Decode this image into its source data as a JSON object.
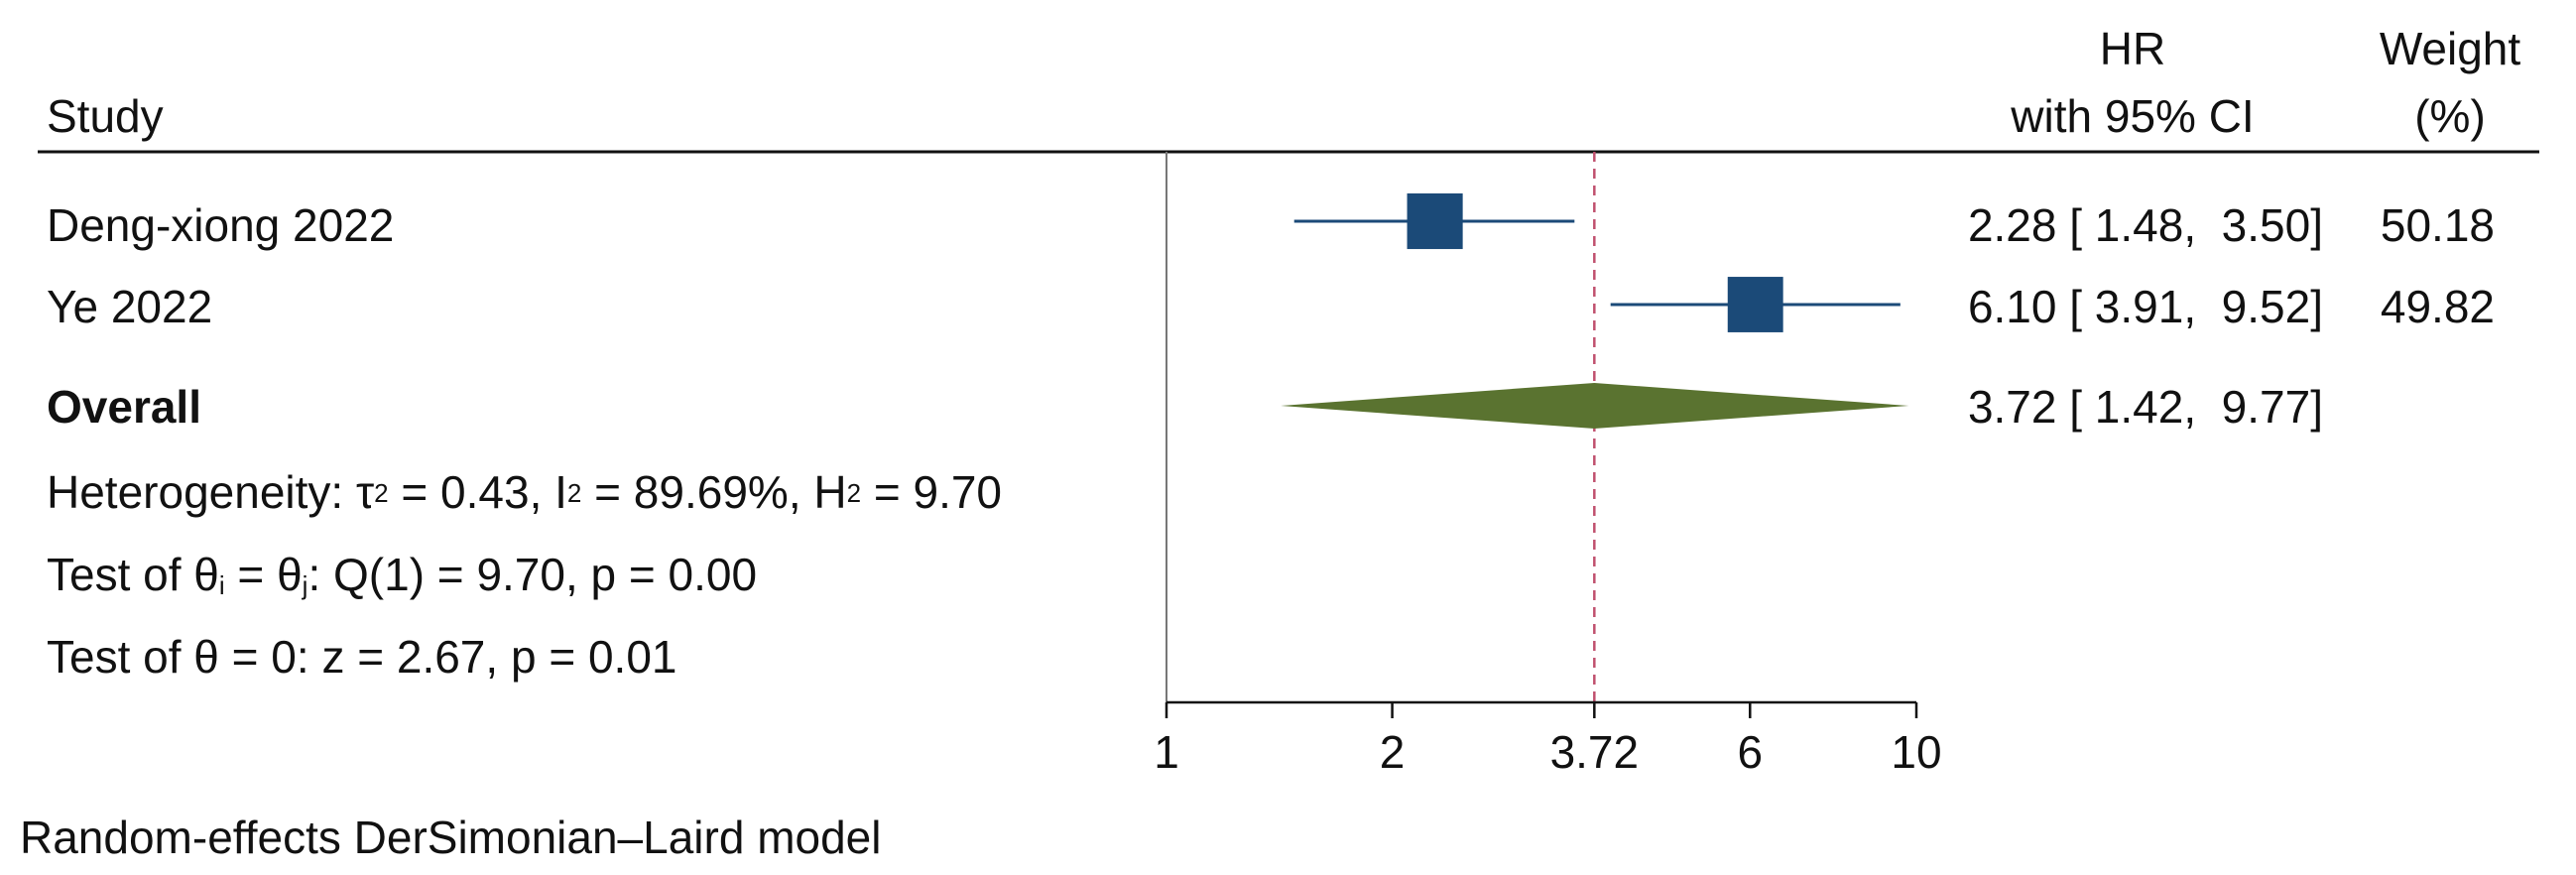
{
  "header": {
    "study": "Study",
    "hr_line1": "HR",
    "hr_line2": "with 95% CI",
    "weight_line1": "Weight",
    "weight_line2": "(%)"
  },
  "studies": [
    {
      "name": "Deng-xiong 2022",
      "ci_text": "2.28 [ 1.48,  3.50]",
      "weight_text": "50.18"
    },
    {
      "name": "Ye 2022",
      "ci_text": "6.10 [ 3.91,  9.52]",
      "weight_text": "49.82"
    }
  ],
  "overall": {
    "label": "Overall",
    "ci_text": "3.72 [ 1.42,  9.77]"
  },
  "stats": {
    "heterogeneity_prefix": "Heterogeneity: τ",
    "tau_sq_exp": "2",
    "tau_sq_value": " = 0.43, I",
    "i_sq_exp": "2",
    "i_sq_value": " = 89.69%, H",
    "h_sq_exp": "2",
    "h_sq_value": " = 9.70",
    "test_theta_prefix": "Test of θ",
    "sub_i": "i",
    "equals_theta": " = θ",
    "sub_j": "j",
    "test_theta_rest": ": Q(1) = 9.70, p = 0.00",
    "test_zero": "Test of θ = 0: z = 2.67, p = 0.01"
  },
  "footer": "Random-effects DerSimonian–Laird model",
  "chart_data": {
    "type": "forest",
    "measure": "HR",
    "scale": "log",
    "xlim": [
      1,
      10
    ],
    "ticks": [
      1,
      2,
      3.72,
      6,
      10
    ],
    "tick_labels": [
      "1",
      "2",
      "3.72",
      "6",
      "10"
    ],
    "null_line": 1,
    "overall_line": 3.72,
    "series": [
      {
        "study": "Deng-xiong 2022",
        "hr": 2.28,
        "lower": 1.48,
        "upper": 3.5,
        "weight": 50.18
      },
      {
        "study": "Ye 2022",
        "hr": 6.1,
        "lower": 3.91,
        "upper": 9.52,
        "weight": 49.82
      }
    ],
    "overall": {
      "hr": 3.72,
      "lower": 1.42,
      "upper": 9.77
    },
    "colors": {
      "marker": "#1b4a78",
      "ci_line": "#1b4a78",
      "diamond": "#5a7330",
      "overall_line": "#c0506e",
      "axis": "#777777"
    }
  }
}
